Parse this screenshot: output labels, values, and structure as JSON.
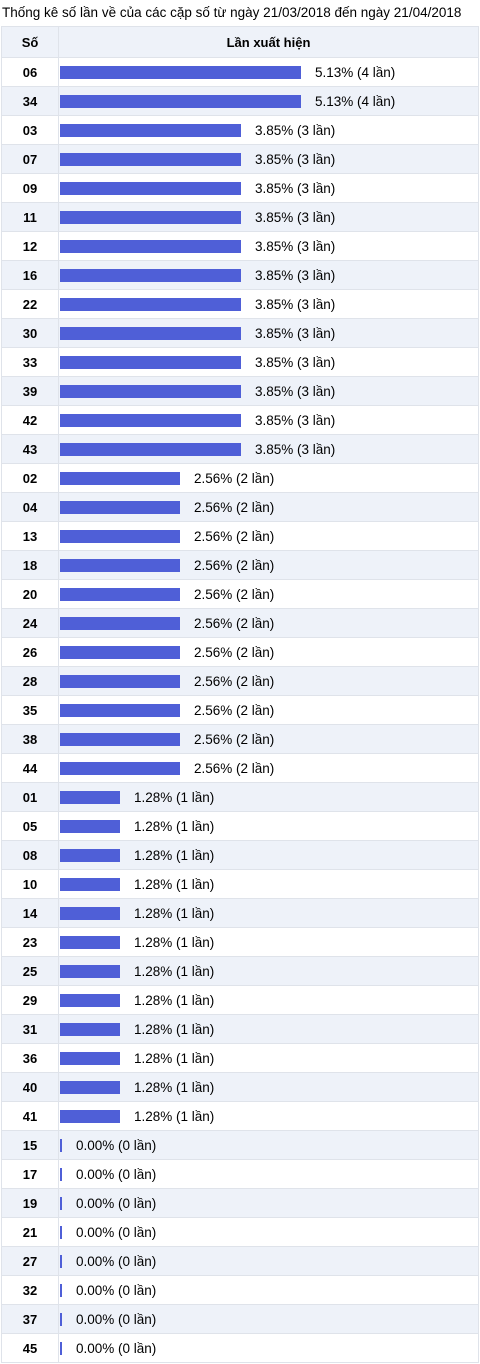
{
  "title": "Thống kê số lần về của các cặp số từ ngày 21/03/2018 đến ngày 21/04/2018",
  "columns": [
    "Số",
    "Lần xuất hiện"
  ],
  "colors": {
    "bar": "#4f5fd7",
    "alt_row": "#eef2f9",
    "border": "#dfe3ea"
  },
  "chart_data": {
    "type": "bar",
    "orientation": "horizontal",
    "title": "Thống kê số lần về của các cặp số từ ngày 21/03/2018 đến ngày 21/04/2018",
    "xlabel": "Lần xuất hiện",
    "ylabel": "Số",
    "grid": false,
    "rows": [
      {
        "so": "06",
        "percent": 5.13,
        "count": 4,
        "label": "5.13% (4 lần)"
      },
      {
        "so": "34",
        "percent": 5.13,
        "count": 4,
        "label": "5.13% (4 lần)"
      },
      {
        "so": "03",
        "percent": 3.85,
        "count": 3,
        "label": "3.85% (3 lần)"
      },
      {
        "so": "07",
        "percent": 3.85,
        "count": 3,
        "label": "3.85% (3 lần)"
      },
      {
        "so": "09",
        "percent": 3.85,
        "count": 3,
        "label": "3.85% (3 lần)"
      },
      {
        "so": "11",
        "percent": 3.85,
        "count": 3,
        "label": "3.85% (3 lần)"
      },
      {
        "so": "12",
        "percent": 3.85,
        "count": 3,
        "label": "3.85% (3 lần)"
      },
      {
        "so": "16",
        "percent": 3.85,
        "count": 3,
        "label": "3.85% (3 lần)"
      },
      {
        "so": "22",
        "percent": 3.85,
        "count": 3,
        "label": "3.85% (3 lần)"
      },
      {
        "so": "30",
        "percent": 3.85,
        "count": 3,
        "label": "3.85% (3 lần)"
      },
      {
        "so": "33",
        "percent": 3.85,
        "count": 3,
        "label": "3.85% (3 lần)"
      },
      {
        "so": "39",
        "percent": 3.85,
        "count": 3,
        "label": "3.85% (3 lần)"
      },
      {
        "so": "42",
        "percent": 3.85,
        "count": 3,
        "label": "3.85% (3 lần)"
      },
      {
        "so": "43",
        "percent": 3.85,
        "count": 3,
        "label": "3.85% (3 lần)"
      },
      {
        "so": "02",
        "percent": 2.56,
        "count": 2,
        "label": "2.56% (2 lần)"
      },
      {
        "so": "04",
        "percent": 2.56,
        "count": 2,
        "label": "2.56% (2 lần)"
      },
      {
        "so": "13",
        "percent": 2.56,
        "count": 2,
        "label": "2.56% (2 lần)"
      },
      {
        "so": "18",
        "percent": 2.56,
        "count": 2,
        "label": "2.56% (2 lần)"
      },
      {
        "so": "20",
        "percent": 2.56,
        "count": 2,
        "label": "2.56% (2 lần)"
      },
      {
        "so": "24",
        "percent": 2.56,
        "count": 2,
        "label": "2.56% (2 lần)"
      },
      {
        "so": "26",
        "percent": 2.56,
        "count": 2,
        "label": "2.56% (2 lần)"
      },
      {
        "so": "28",
        "percent": 2.56,
        "count": 2,
        "label": "2.56% (2 lần)"
      },
      {
        "so": "35",
        "percent": 2.56,
        "count": 2,
        "label": "2.56% (2 lần)"
      },
      {
        "so": "38",
        "percent": 2.56,
        "count": 2,
        "label": "2.56% (2 lần)"
      },
      {
        "so": "44",
        "percent": 2.56,
        "count": 2,
        "label": "2.56% (2 lần)"
      },
      {
        "so": "01",
        "percent": 1.28,
        "count": 1,
        "label": "1.28% (1 lần)"
      },
      {
        "so": "05",
        "percent": 1.28,
        "count": 1,
        "label": "1.28% (1 lần)"
      },
      {
        "so": "08",
        "percent": 1.28,
        "count": 1,
        "label": "1.28% (1 lần)"
      },
      {
        "so": "10",
        "percent": 1.28,
        "count": 1,
        "label": "1.28% (1 lần)"
      },
      {
        "so": "14",
        "percent": 1.28,
        "count": 1,
        "label": "1.28% (1 lần)"
      },
      {
        "so": "23",
        "percent": 1.28,
        "count": 1,
        "label": "1.28% (1 lần)"
      },
      {
        "so": "25",
        "percent": 1.28,
        "count": 1,
        "label": "1.28% (1 lần)"
      },
      {
        "so": "29",
        "percent": 1.28,
        "count": 1,
        "label": "1.28% (1 lần)"
      },
      {
        "so": "31",
        "percent": 1.28,
        "count": 1,
        "label": "1.28% (1 lần)"
      },
      {
        "so": "36",
        "percent": 1.28,
        "count": 1,
        "label": "1.28% (1 lần)"
      },
      {
        "so": "40",
        "percent": 1.28,
        "count": 1,
        "label": "1.28% (1 lần)"
      },
      {
        "so": "41",
        "percent": 1.28,
        "count": 1,
        "label": "1.28% (1 lần)"
      },
      {
        "so": "15",
        "percent": 0.0,
        "count": 0,
        "label": "0.00% (0 lần)"
      },
      {
        "so": "17",
        "percent": 0.0,
        "count": 0,
        "label": "0.00% (0 lần)"
      },
      {
        "so": "19",
        "percent": 0.0,
        "count": 0,
        "label": "0.00% (0 lần)"
      },
      {
        "so": "21",
        "percent": 0.0,
        "count": 0,
        "label": "0.00% (0 lần)"
      },
      {
        "so": "27",
        "percent": 0.0,
        "count": 0,
        "label": "0.00% (0 lần)"
      },
      {
        "so": "32",
        "percent": 0.0,
        "count": 0,
        "label": "0.00% (0 lần)"
      },
      {
        "so": "37",
        "percent": 0.0,
        "count": 0,
        "label": "0.00% (0 lần)"
      },
      {
        "so": "45",
        "percent": 0.0,
        "count": 0,
        "label": "0.00% (0 lần)"
      }
    ]
  }
}
